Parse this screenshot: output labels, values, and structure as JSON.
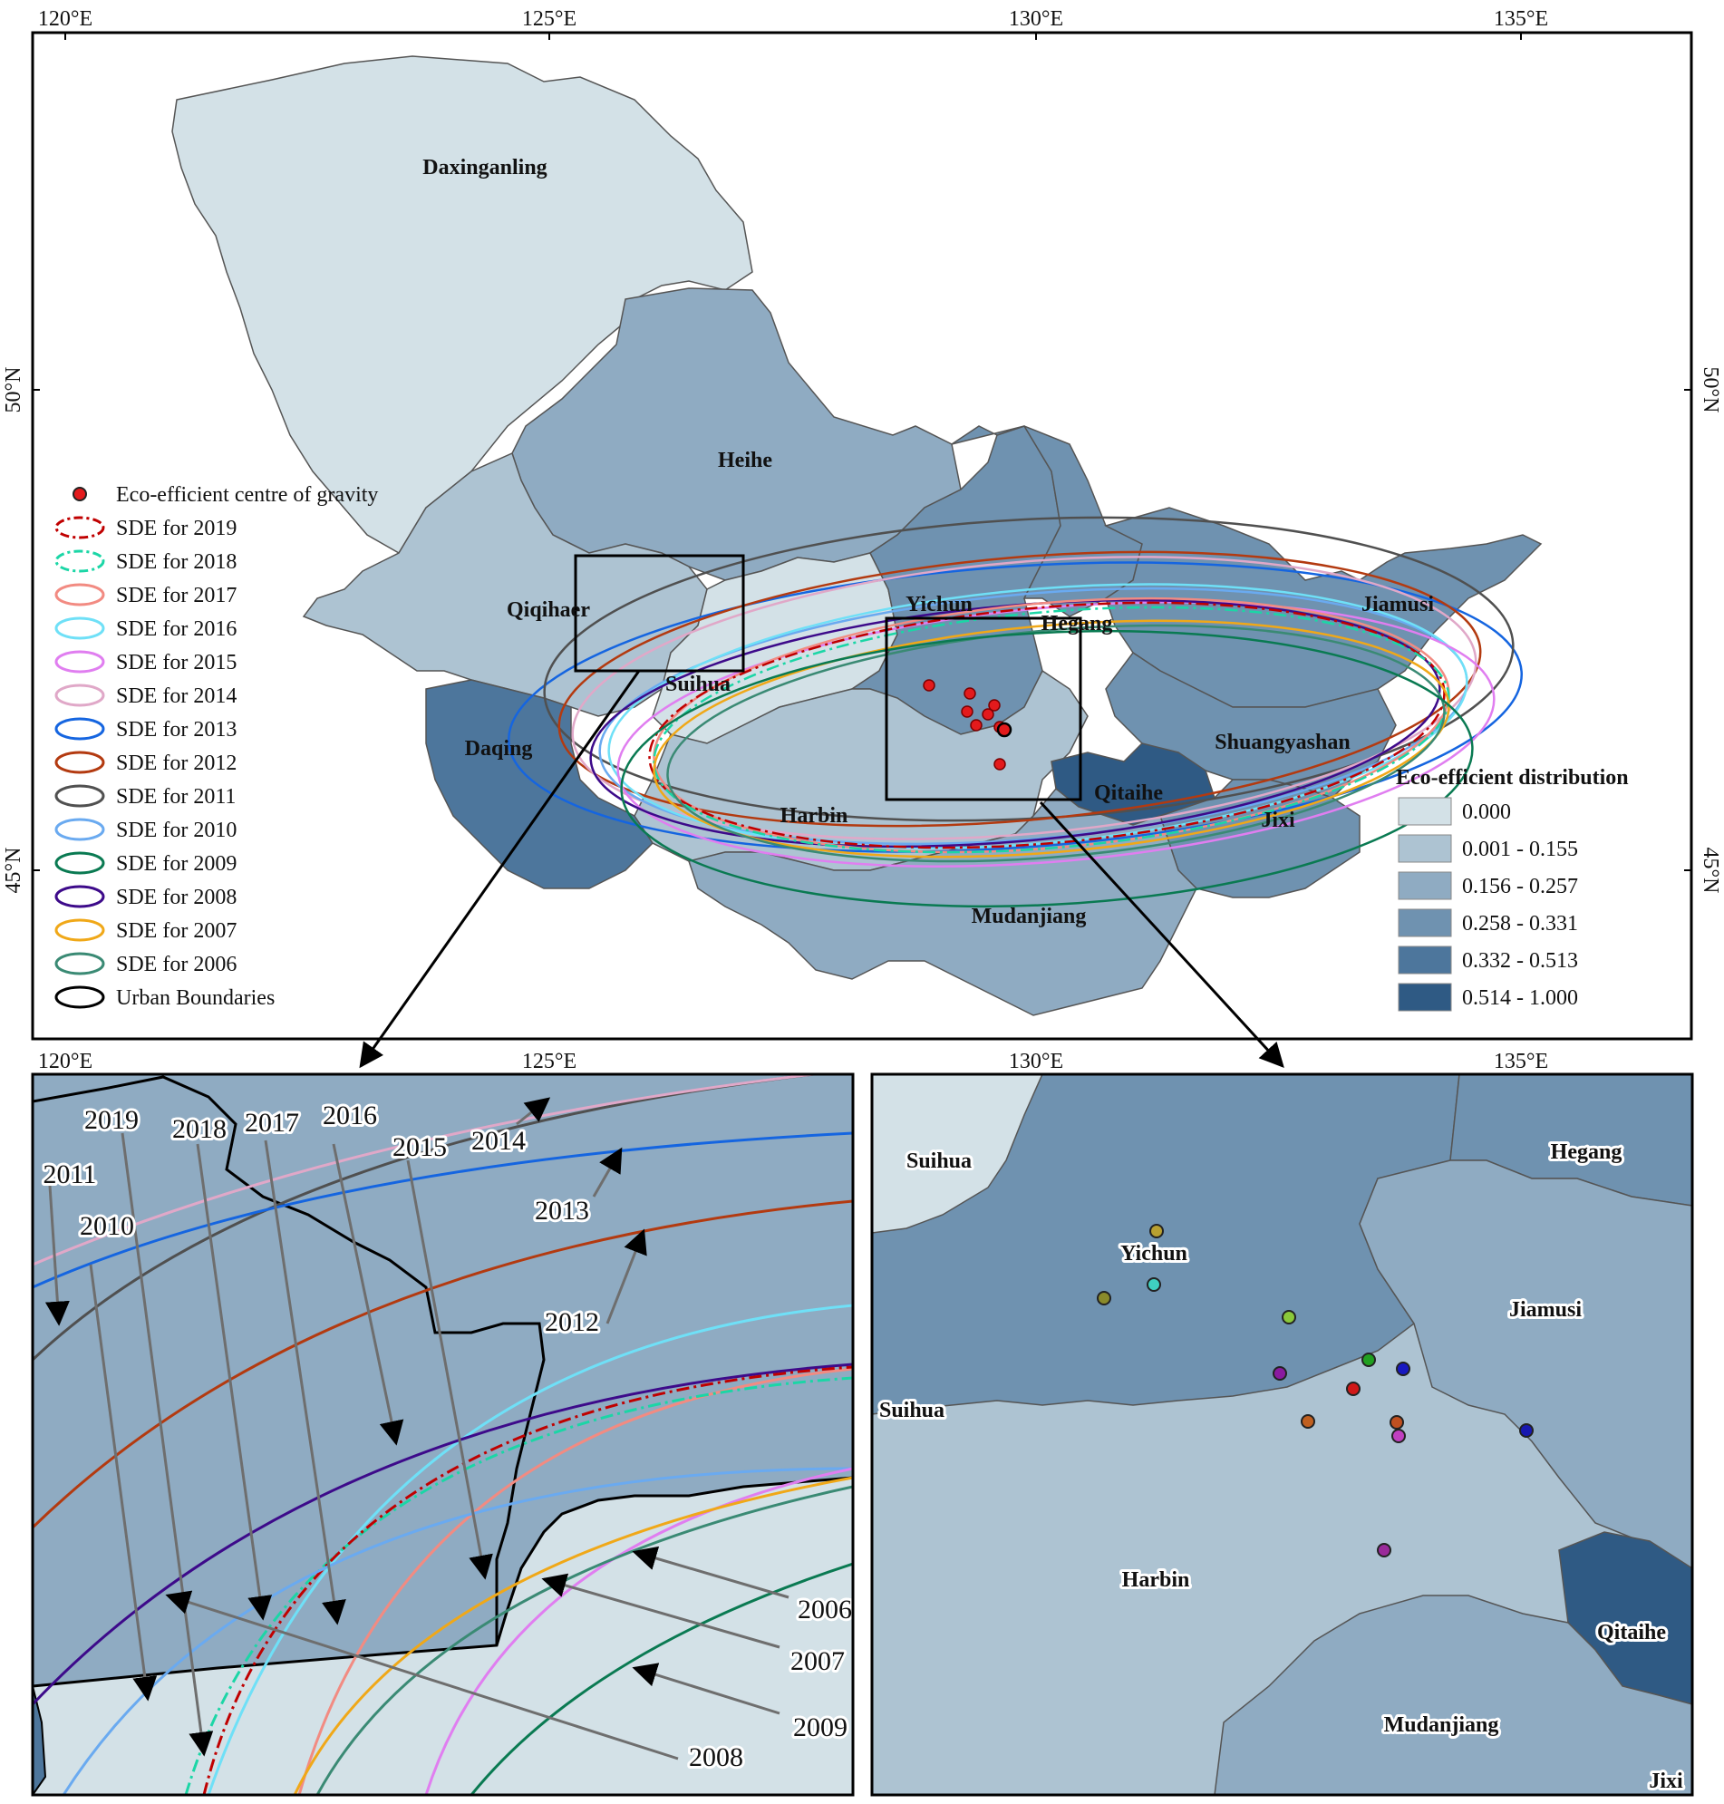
{
  "main_map": {
    "lon_ticks": [
      "120°E",
      "125°E",
      "130°E",
      "135°E"
    ],
    "lat_ticks": [
      "50°N",
      "45°N"
    ],
    "cities": [
      "Daxinganling",
      "Heihe",
      "Qiqihaer",
      "Yichun",
      "Hegang",
      "Jiamusi",
      "Suihua",
      "Daqing",
      "Shuangyashan",
      "Harbin",
      "Qitaihe",
      "Jixi",
      "Mudanjiang"
    ]
  },
  "legend_left": {
    "items": [
      {
        "label": "Eco-efficient centre of gravity",
        "kind": "point",
        "color": "#e31a1c"
      },
      {
        "label": "SDE for 2019",
        "kind": "dashdot",
        "color": "#c00000"
      },
      {
        "label": "SDE for 2018",
        "kind": "dashdot",
        "color": "#1bd6a6"
      },
      {
        "label": "SDE for 2017",
        "kind": "line",
        "color": "#f28b82"
      },
      {
        "label": "SDE for 2016",
        "kind": "line",
        "color": "#6fe0f7"
      },
      {
        "label": "SDE for 2015",
        "kind": "line",
        "color": "#e07ef0"
      },
      {
        "label": "SDE for 2014",
        "kind": "line",
        "color": "#e0a8c8"
      },
      {
        "label": "SDE for 2013",
        "kind": "line",
        "color": "#1565e0"
      },
      {
        "label": "SDE for 2012",
        "kind": "line",
        "color": "#b33a10"
      },
      {
        "label": "SDE for 2011",
        "kind": "line",
        "color": "#505050"
      },
      {
        "label": "SDE for 2010",
        "kind": "line",
        "color": "#6aaaf0"
      },
      {
        "label": "SDE for 2009",
        "kind": "line",
        "color": "#0a7a52"
      },
      {
        "label": "SDE for 2008",
        "kind": "line",
        "color": "#3d0a8a"
      },
      {
        "label": "SDE for 2007",
        "kind": "line",
        "color": "#f0a818"
      },
      {
        "label": "SDE for 2006",
        "kind": "line",
        "color": "#3a8a74"
      },
      {
        "label": "Urban Boundaries",
        "kind": "line",
        "color": "#000000"
      }
    ]
  },
  "legend_right": {
    "title": "Eco-efficient distribution",
    "classes": [
      {
        "label": "0.000",
        "color": "#d3e1e7"
      },
      {
        "label": "0.001 - 0.155",
        "color": "#adc3d2"
      },
      {
        "label": "0.156 - 0.257",
        "color": "#8fabc2"
      },
      {
        "label": "0.258 - 0.331",
        "color": "#6f92b0"
      },
      {
        "label": "0.332 - 0.513",
        "color": "#4d769c"
      },
      {
        "label": "0.514 - 1.000",
        "color": "#2f5a84"
      }
    ]
  },
  "inset_left": {
    "year_labels": [
      "2019",
      "2018",
      "2017",
      "2016",
      "2015",
      "2014",
      "2011",
      "2010",
      "2013",
      "2012",
      "2006",
      "2007",
      "2009",
      "2008"
    ]
  },
  "inset_right": {
    "cities": [
      "Suihua",
      "Hegang",
      "Yichun",
      "Jiamusi",
      "Suihua",
      "Harbin",
      "Qitaihe",
      "Mudanjiang",
      "Jixi"
    ]
  }
}
